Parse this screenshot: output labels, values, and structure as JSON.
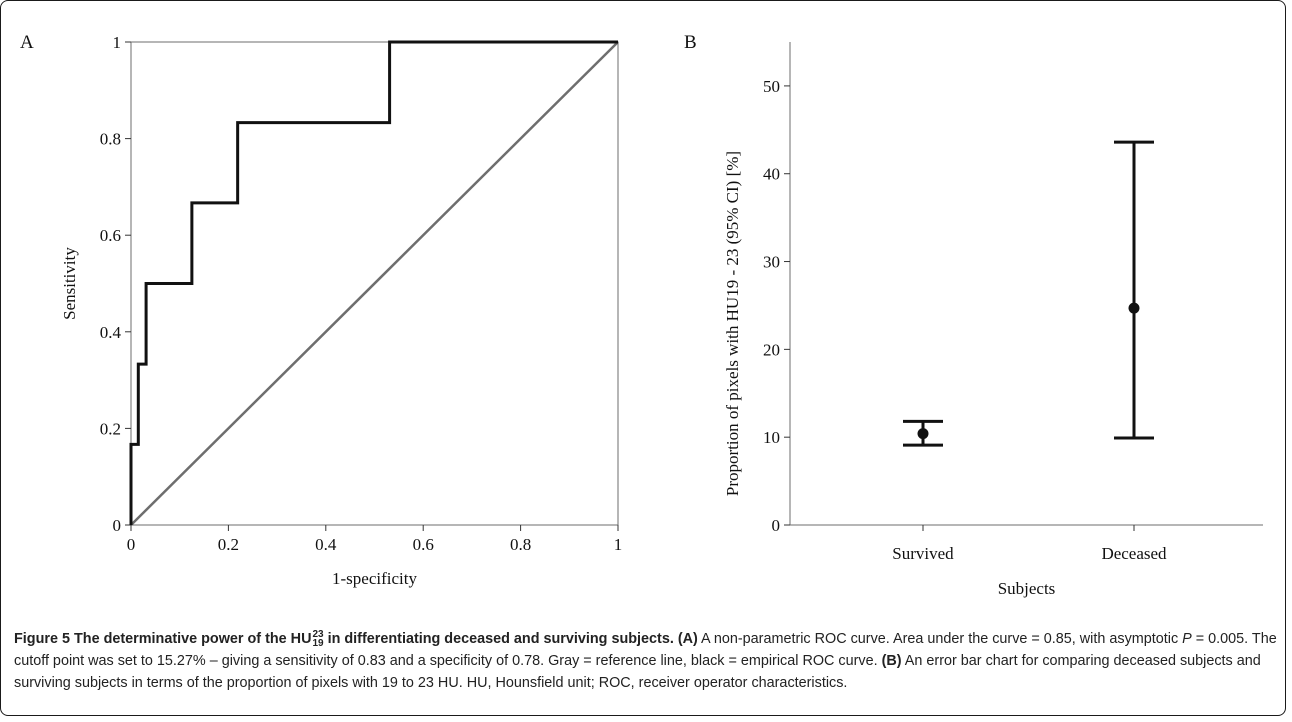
{
  "chart_data": [
    {
      "type": "line",
      "panel_label": "A",
      "xlabel": "1-specificity",
      "ylabel": "Sensitivity",
      "xlim": [
        0,
        1
      ],
      "ylim": [
        0,
        1
      ],
      "xticks": [
        "0",
        "0.2",
        "0.4",
        "0.6",
        "0.8",
        "1"
      ],
      "yticks": [
        "0",
        "0.2",
        "0.4",
        "0.6",
        "0.8",
        "1"
      ],
      "series": [
        {
          "color": "#111111",
          "x": [
            0,
            0,
            0.015,
            0.015,
            0.031,
            0.031,
            0.125,
            0.125,
            0.219,
            0.219,
            0.531,
            0.531,
            1.0
          ],
          "y": [
            0,
            0.167,
            0.167,
            0.333,
            0.333,
            0.5,
            0.5,
            0.667,
            0.667,
            0.833,
            0.833,
            1.0,
            1.0
          ]
        },
        {
          "color": "#6e6e6e",
          "x": [
            0,
            1
          ],
          "y": [
            0,
            1
          ]
        }
      ]
    },
    {
      "type": "errorbar",
      "panel_label": "B",
      "xlabel": "Subjects",
      "ylabel": "Proportion of pixels with HU19 - 23 (95% CI) [%]",
      "ylim": [
        0,
        55
      ],
      "yticks": [
        "0",
        "10",
        "20",
        "30",
        "40",
        "50"
      ],
      "categories": [
        "Survived",
        "Deceased"
      ],
      "means": [
        10.4,
        24.7
      ],
      "lower": [
        9.1,
        9.9
      ],
      "upper": [
        11.8,
        43.6
      ]
    }
  ],
  "caption": {
    "figure_label": "Figure 5",
    "title_pre": "The determinative power of the HU",
    "title_sup": "23",
    "title_sub": "19",
    "title_post": " in differentiating deceased and surviving subjects.",
    "part_a_label": "(A)",
    "part_a_text_1": " A non-parametric ROC curve. Area under the curve = 0.85, with asymptotic ",
    "p_symbol": "P",
    "part_a_text_2": " = 0.005. The cutoff point was set to 15.27% – giving a sensitivity of 0.83 and a specificity of 0.78. Gray = reference line, black = empirical ROC curve. ",
    "part_b_label": "(B)",
    "part_b_text": " An error bar chart for comparing deceased subjects and surviving subjects in terms of the proportion of pixels with 19 to 23 HU. HU, Hounsfield unit; ROC, receiver operator characteristics."
  }
}
